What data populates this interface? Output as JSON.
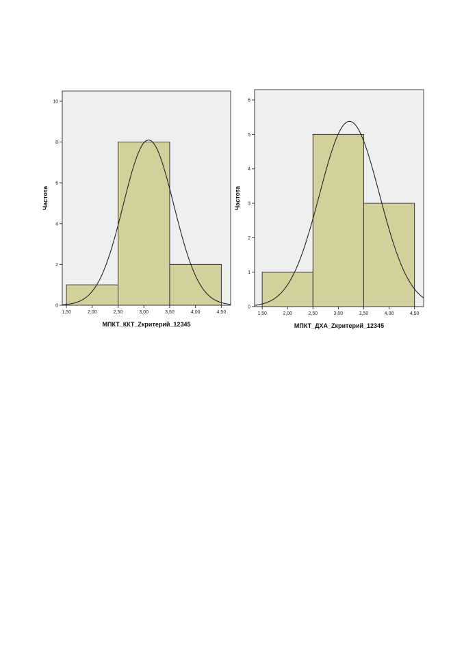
{
  "chart_data": [
    {
      "type": "bar",
      "title": "",
      "xlabel": "МПКТ_ККТ_Zкритерий_12345",
      "ylabel": "Частота",
      "xlim": [
        1.42,
        4.68
      ],
      "ylim": [
        0,
        10.5
      ],
      "x_ticks": [
        1.5,
        2.0,
        2.5,
        3.0,
        3.5,
        4.0,
        4.5
      ],
      "x_tick_labels": [
        "1,50",
        "2,00",
        "2,50",
        "3,00",
        "3,50",
        "4,00",
        "4,50"
      ],
      "y_ticks": [
        0,
        2,
        4,
        6,
        8,
        10
      ],
      "y_tick_labels": [
        "0",
        "2",
        "4",
        "6",
        "8",
        "10"
      ],
      "bins": [
        {
          "from": 1.5,
          "to": 2.5,
          "value": 1
        },
        {
          "from": 2.5,
          "to": 3.5,
          "value": 8
        },
        {
          "from": 3.5,
          "to": 4.5,
          "value": 2
        }
      ],
      "normal_curve": {
        "mean": 3.09,
        "std": 0.49,
        "peak": 8.1
      },
      "grid": false,
      "legend": "none"
    },
    {
      "type": "bar",
      "title": "",
      "xlabel": "МПКТ_ДХА_Zкритерий_12345",
      "ylabel": "Частота",
      "xlim": [
        1.35,
        4.68
      ],
      "ylim": [
        0,
        6.3
      ],
      "x_ticks": [
        1.5,
        2.0,
        2.5,
        3.0,
        3.5,
        4.0,
        4.5
      ],
      "x_tick_labels": [
        "1,50",
        "2,00",
        "2,50",
        "3,00",
        "3,50",
        "4,00",
        "4,50"
      ],
      "y_ticks": [
        0,
        1,
        2,
        3,
        4,
        5,
        6
      ],
      "y_tick_labels": [
        "0",
        "1",
        "2",
        "3",
        "4",
        "5",
        "6"
      ],
      "bins": [
        {
          "from": 1.5,
          "to": 2.5,
          "value": 1
        },
        {
          "from": 2.5,
          "to": 3.5,
          "value": 5
        },
        {
          "from": 3.5,
          "to": 4.5,
          "value": 3
        }
      ],
      "normal_curve": {
        "mean": 3.22,
        "std": 0.59,
        "peak": 5.38
      },
      "grid": false,
      "legend": "none"
    }
  ]
}
